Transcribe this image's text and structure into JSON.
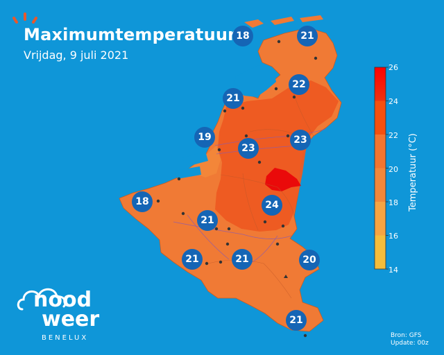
{
  "header": {
    "title": "Maximumtemperatuur",
    "subtitle": "Vrijdag, 9 juli 2021"
  },
  "legend": {
    "title": "Temperatuur (°C)",
    "ticks": [
      "26",
      "24",
      "22",
      "20",
      "18",
      "16",
      "14"
    ],
    "colors": [
      "#ff0000",
      "#f5500f",
      "#f37530",
      "#f3873a",
      "#f7a442",
      "#f4bd3c",
      "#f5cd3a"
    ]
  },
  "badges": [
    {
      "id": "b1",
      "value": "18"
    },
    {
      "id": "b2",
      "value": "21"
    },
    {
      "id": "b3",
      "value": "22"
    },
    {
      "id": "b4",
      "value": "21"
    },
    {
      "id": "b5",
      "value": "19"
    },
    {
      "id": "b6",
      "value": "23"
    },
    {
      "id": "b7",
      "value": "23"
    },
    {
      "id": "b8",
      "value": "18"
    },
    {
      "id": "b9",
      "value": "24"
    },
    {
      "id": "b10",
      "value": "21"
    },
    {
      "id": "b11",
      "value": "21"
    },
    {
      "id": "b12",
      "value": "21"
    },
    {
      "id": "b13",
      "value": "20"
    },
    {
      "id": "b14",
      "value": "21"
    }
  ],
  "logo": {
    "line1": "nood",
    "line2": "weer",
    "line3": "BENELUX"
  },
  "source": {
    "line1": "Bron: GFS",
    "line2": "Update: 00z"
  },
  "colors": {
    "background": "#0f96d8",
    "badge": "#1565b5",
    "land_base": "#f07a35",
    "land_warm": "#ed5a22",
    "hotspot": "#ea0a0a"
  }
}
